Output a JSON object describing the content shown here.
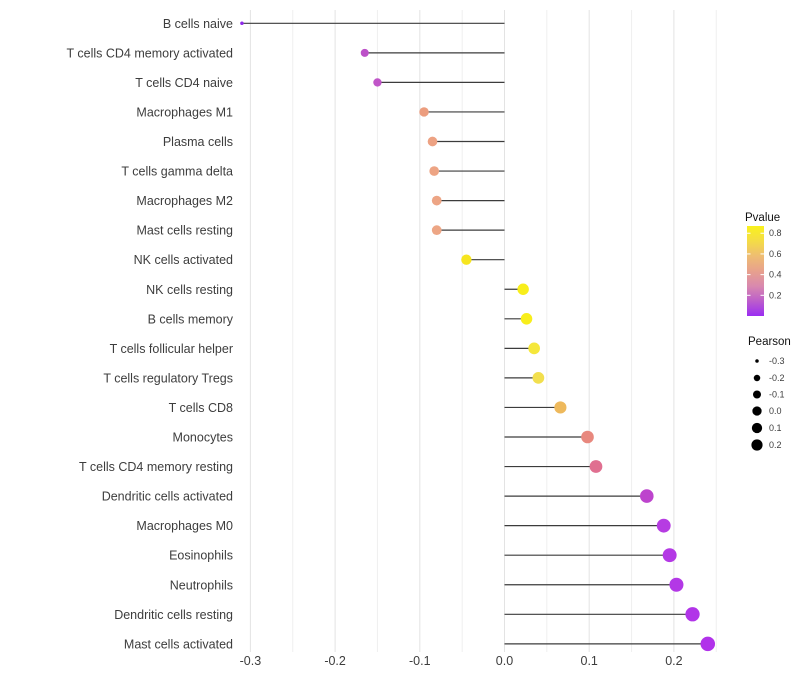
{
  "chart_data": {
    "type": "scatter",
    "subtype": "lollipop",
    "title": "",
    "xlabel": "",
    "ylabel": "",
    "xlim": [
      -0.32,
      0.265
    ],
    "x_ticks": [
      -0.3,
      -0.2,
      -0.1,
      0.0,
      0.1,
      0.2
    ],
    "x_tick_labels": [
      "-0.3",
      "-0.2",
      "-0.1",
      "0.0",
      "0.1",
      "0.2"
    ],
    "grid": {
      "major_step": 0.1,
      "minor_step": 0.05,
      "major_color": "#e3e3e3",
      "minor_color": "#efefef"
    },
    "stem_color": "#3c3c3c",
    "axis_text_color": "#3d3d3d",
    "points": [
      {
        "label": "B cells naive",
        "pearson": -0.31,
        "pvalue_est": 0.03,
        "color": "#8e27ea"
      },
      {
        "label": "T cells CD4 memory activated",
        "pearson": -0.165,
        "pvalue_est": 0.26,
        "color": "#bc50c8"
      },
      {
        "label": "T cells CD4 naive",
        "pearson": -0.15,
        "pvalue_est": 0.28,
        "color": "#c055c8"
      },
      {
        "label": "Macrophages M1",
        "pearson": -0.095,
        "pvalue_est": 0.55,
        "color": "#ec9d7e"
      },
      {
        "label": "Plasma cells",
        "pearson": -0.085,
        "pvalue_est": 0.56,
        "color": "#eda283"
      },
      {
        "label": "T cells gamma delta",
        "pearson": -0.083,
        "pvalue_est": 0.57,
        "color": "#eda484"
      },
      {
        "label": "Macrophages M2",
        "pearson": -0.08,
        "pvalue_est": 0.57,
        "color": "#eda585"
      },
      {
        "label": "Mast cells resting",
        "pearson": -0.08,
        "pvalue_est": 0.58,
        "color": "#eda685"
      },
      {
        "label": "NK cells activated",
        "pearson": -0.045,
        "pvalue_est": 0.82,
        "color": "#f6e51f"
      },
      {
        "label": "NK cells resting",
        "pearson": 0.022,
        "pvalue_est": 0.86,
        "color": "#f8ee1b"
      },
      {
        "label": "B cells memory",
        "pearson": 0.026,
        "pvalue_est": 0.86,
        "color": "#f8ee1b"
      },
      {
        "label": "T cells follicular helper",
        "pearson": 0.035,
        "pvalue_est": 0.8,
        "color": "#f5e73b"
      },
      {
        "label": "T cells regulatory  Tregs",
        "pearson": 0.04,
        "pvalue_est": 0.75,
        "color": "#f2df4e"
      },
      {
        "label": "T cells CD8",
        "pearson": 0.066,
        "pvalue_est": 0.63,
        "color": "#eeb95c"
      },
      {
        "label": "Monocytes",
        "pearson": 0.098,
        "pvalue_est": 0.48,
        "color": "#e8887e"
      },
      {
        "label": "T cells CD4 memory resting",
        "pearson": 0.108,
        "pvalue_est": 0.4,
        "color": "#e06f90"
      },
      {
        "label": "Dendritic cells activated",
        "pearson": 0.168,
        "pvalue_est": 0.25,
        "color": "#bd44cd"
      },
      {
        "label": "Macrophages M0",
        "pearson": 0.188,
        "pvalue_est": 0.15,
        "color": "#b63ce2"
      },
      {
        "label": "Eosinophils",
        "pearson": 0.195,
        "pvalue_est": 0.13,
        "color": "#b439e5"
      },
      {
        "label": "Neutrophils",
        "pearson": 0.203,
        "pvalue_est": 0.12,
        "color": "#b338e6"
      },
      {
        "label": "Dendritic cells resting",
        "pearson": 0.222,
        "pvalue_est": 0.1,
        "color": "#b134e8"
      },
      {
        "label": "Mast cells activated",
        "pearson": 0.24,
        "pvalue_est": 0.08,
        "color": "#b132ea"
      }
    ],
    "legends": {
      "pvalue": {
        "title": "Pvalue",
        "tick_values": [
          0.8,
          0.6,
          0.4,
          0.2
        ],
        "tick_labels": [
          "0.8",
          "0.6",
          "0.4",
          "0.2"
        ],
        "bar_range": [
          0.0,
          0.87
        ],
        "gradient_bottom_to_top": [
          "#9b2df2",
          "#bc5ecb",
          "#d989ae",
          "#e8a18d",
          "#eebd72",
          "#f4dc46",
          "#f9f21d"
        ]
      },
      "pearson": {
        "title": "Pearson",
        "size_values": [
          -0.3,
          -0.2,
          -0.1,
          0.0,
          0.1,
          0.2
        ],
        "size_labels": [
          "-0.3",
          "-0.2",
          "-0.1",
          "0.0",
          "0.1",
          "0.2"
        ],
        "dot_color": "#000000"
      }
    },
    "layout": {
      "legend_position": "right",
      "grid_on": true,
      "background": "#ffffff"
    }
  }
}
